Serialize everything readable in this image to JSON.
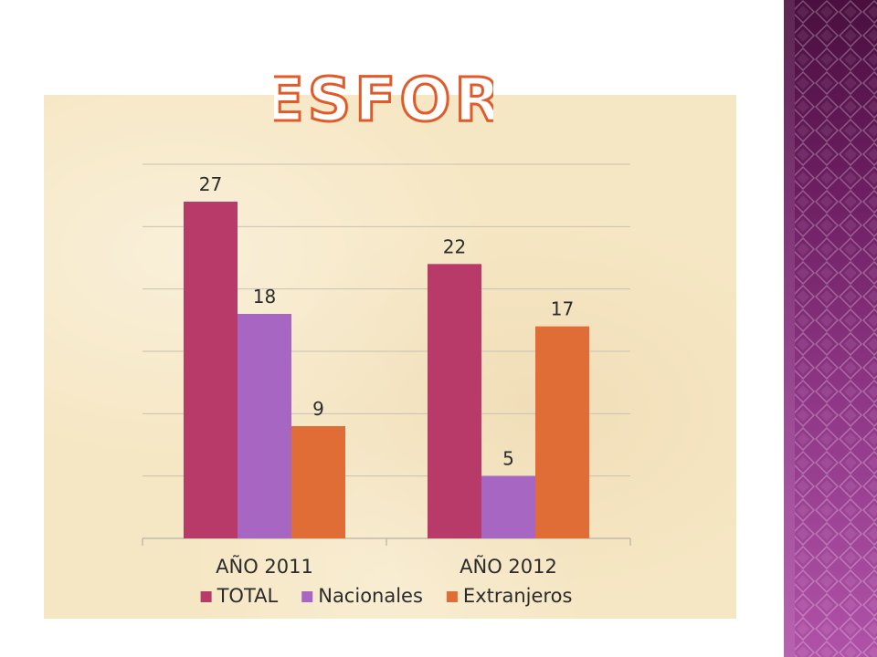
{
  "chart_data": {
    "type": "bar",
    "title": "ESFOR",
    "categories": [
      "AÑO 2011",
      "AÑO 2012"
    ],
    "series": [
      {
        "name": "TOTAL",
        "values": [
          27,
          22
        ],
        "color": "#b73a68"
      },
      {
        "name": "Nacionales",
        "values": [
          18,
          5
        ],
        "color": "#a766c2"
      },
      {
        "name": "Extranjeros",
        "values": [
          9,
          17
        ],
        "color": "#e06c36"
      }
    ],
    "ylim": [
      0,
      30
    ],
    "grid": true,
    "legend": "bottom",
    "xlabel": "",
    "ylabel": ""
  },
  "theme": {
    "title_fill": "#ffffff",
    "title_stroke": "#e05a2a",
    "gridline": "#c8c2b2",
    "axis": "#b8b2a2"
  }
}
